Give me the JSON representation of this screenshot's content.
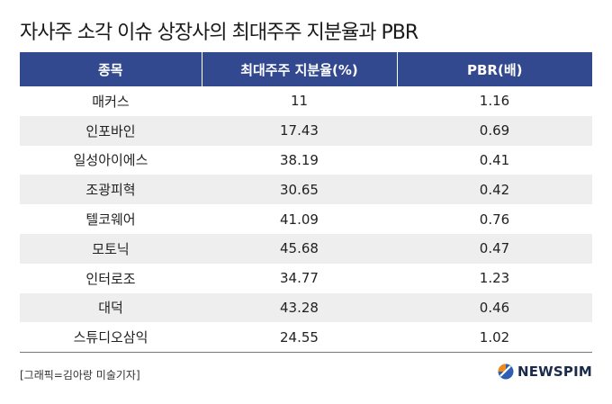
{
  "title": "자사주 소각 이슈 상장사의 최대주주 지분율과 PBR",
  "table": {
    "headers": [
      "종목",
      "최대주주 지분율(%)",
      "PBR(배)"
    ],
    "rows": [
      [
        "매커스",
        "11",
        "1.16"
      ],
      [
        "인포바인",
        "17.43",
        "0.69"
      ],
      [
        "일성아이에스",
        "38.19",
        "0.41"
      ],
      [
        "조광피혁",
        "30.65",
        "0.42"
      ],
      [
        "텔코웨어",
        "41.09",
        "0.76"
      ],
      [
        "모토닉",
        "45.68",
        "0.47"
      ],
      [
        "인터로조",
        "34.77",
        "1.23"
      ],
      [
        "대덕",
        "43.28",
        "0.46"
      ],
      [
        "스튜디오삼익",
        "24.55",
        "1.02"
      ]
    ]
  },
  "credit": "[그래픽=김아랑 미술기자]",
  "logo": {
    "text": "NEWSPIM",
    "colors": {
      "orange": "#f08a1c",
      "blue": "#2f5fb3"
    }
  },
  "colors": {
    "header_bg": "#33498f",
    "stripe_bg": "#eeeeee"
  }
}
